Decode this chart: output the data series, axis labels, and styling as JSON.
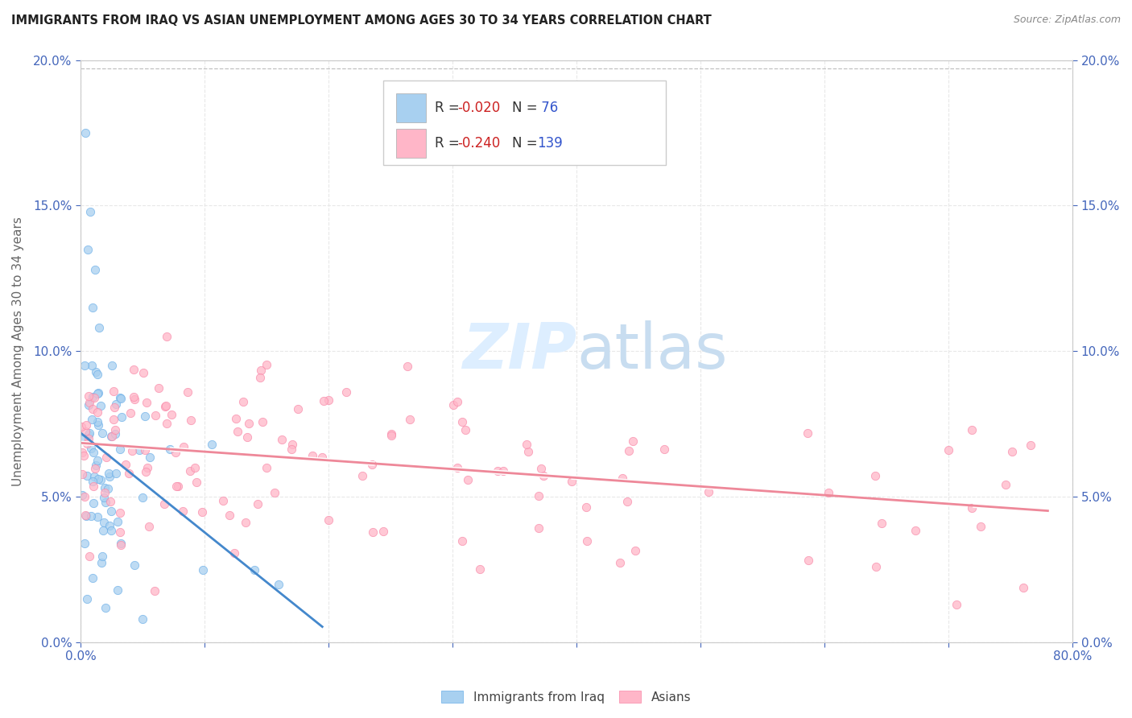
{
  "title": "IMMIGRANTS FROM IRAQ VS ASIAN UNEMPLOYMENT AMONG AGES 30 TO 34 YEARS CORRELATION CHART",
  "source": "Source: ZipAtlas.com",
  "ylabel": "Unemployment Among Ages 30 to 34 years",
  "xlim": [
    0.0,
    0.8
  ],
  "ylim": [
    0.0,
    0.2
  ],
  "color_iraq": "#a8d0f0",
  "color_iraq_edge": "#6aaee8",
  "color_asian": "#ffb6c8",
  "color_asian_edge": "#f888a8",
  "color_trendline_iraq": "#4488cc",
  "color_trendline_asian": "#ee8899",
  "color_trendline_dashed": "#bbbbbb",
  "watermark_color": "#ddeeff",
  "tick_color": "#4466bb",
  "grid_color": "#e8e8e8",
  "spine_color": "#cccccc",
  "title_color": "#222222",
  "source_color": "#888888",
  "ylabel_color": "#666666"
}
